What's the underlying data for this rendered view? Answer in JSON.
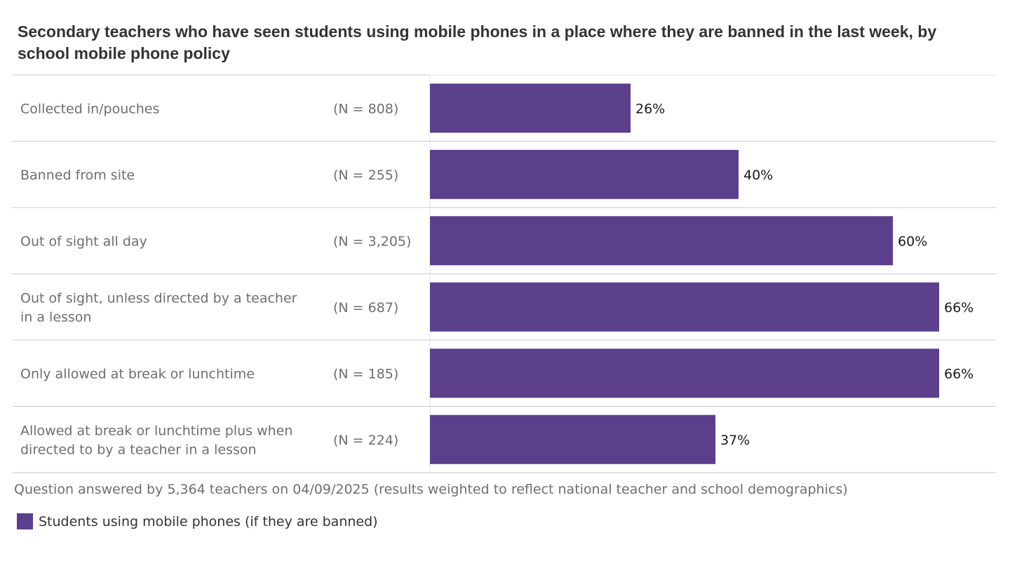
{
  "chart_data": {
    "type": "bar",
    "orientation": "horizontal",
    "title": "Secondary teachers who have seen students using mobile phones in a place  where they are banned in the last week, by school mobile phone policy",
    "categories": [
      [
        "Collected in/pouches"
      ],
      [
        "Banned from site"
      ],
      [
        "Out of sight all day"
      ],
      [
        "Out of sight, unless directed by a teacher",
        "in a lesson"
      ],
      [
        "Only allowed at break or lunchtime"
      ],
      [
        "Allowed at break or lunchtime plus when",
        "directed to by a teacher in a lesson"
      ]
    ],
    "sample_sizes": [
      "(N = 808)",
      "(N = 255)",
      "(N = 3,205)",
      "(N = 687)",
      "(N = 185)",
      "(N = 224)"
    ],
    "series": [
      {
        "name": "Students using mobile phones (if they are banned)",
        "values": [
          26,
          40,
          60,
          66,
          66,
          37
        ],
        "labels": [
          "26%",
          "40%",
          "60%",
          "66%",
          "66%",
          "37%"
        ],
        "color": "#5b3f8c"
      }
    ],
    "legend_position": "bottom-left",
    "grid": false
  },
  "footnote": "Question answered by 5,364 teachers on 04/09/2025 (results weighted to reflect national teacher and school demographics)",
  "legend": {
    "label": "Students using mobile phones (if they are banned)"
  },
  "colors": {
    "bar": "#5b3f8c",
    "row_divider": "#c8c8c8",
    "axis_line": "#e3e3e3"
  }
}
